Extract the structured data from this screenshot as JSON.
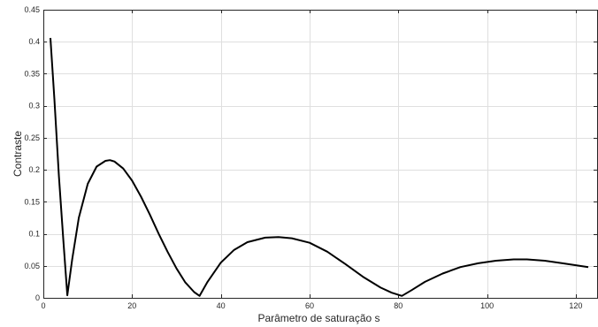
{
  "chart_data": {
    "type": "line",
    "title": "",
    "xlabel": "Parâmetro de saturação s",
    "ylabel": "Contraste",
    "xlim": [
      0,
      125
    ],
    "ylim": [
      0,
      0.45
    ],
    "grid": true,
    "x_ticks": [
      0,
      20,
      40,
      60,
      80,
      100,
      120
    ],
    "x_tick_labels": [
      "0",
      "20",
      "40",
      "60",
      "80",
      "100",
      "120"
    ],
    "y_ticks": [
      0,
      0.05,
      0.1,
      0.15,
      0.2,
      0.25,
      0.3,
      0.35,
      0.4,
      0.45
    ],
    "y_tick_labels": [
      "0",
      "0.05",
      "0.1",
      "0.15",
      "0.2",
      "0.25",
      "0.3",
      "0.35",
      "0.4",
      "0.45"
    ],
    "series": [
      {
        "color": "#000000",
        "x": [
          1.6,
          2.5,
          3.5,
          4.5,
          5.4,
          6.5,
          8,
          10,
          12,
          14,
          15,
          16,
          18,
          20,
          22,
          24,
          26,
          28,
          30,
          32,
          34,
          35.2,
          37,
          40,
          43,
          46,
          50,
          53,
          56,
          60,
          64,
          68,
          72,
          76,
          78.5,
          80.8,
          83,
          86,
          90,
          94,
          98,
          102,
          106,
          109,
          113,
          117,
          120,
          122.8
        ],
        "y": [
          0.406,
          0.31,
          0.19,
          0.09,
          0.004,
          0.06,
          0.125,
          0.178,
          0.205,
          0.214,
          0.215,
          0.213,
          0.202,
          0.183,
          0.158,
          0.13,
          0.1,
          0.072,
          0.046,
          0.024,
          0.009,
          0.003,
          0.025,
          0.055,
          0.075,
          0.087,
          0.094,
          0.095,
          0.093,
          0.086,
          0.072,
          0.053,
          0.033,
          0.016,
          0.008,
          0.003,
          0.012,
          0.025,
          0.038,
          0.048,
          0.054,
          0.058,
          0.06,
          0.06,
          0.058,
          0.054,
          0.051,
          0.048
        ]
      }
    ]
  }
}
